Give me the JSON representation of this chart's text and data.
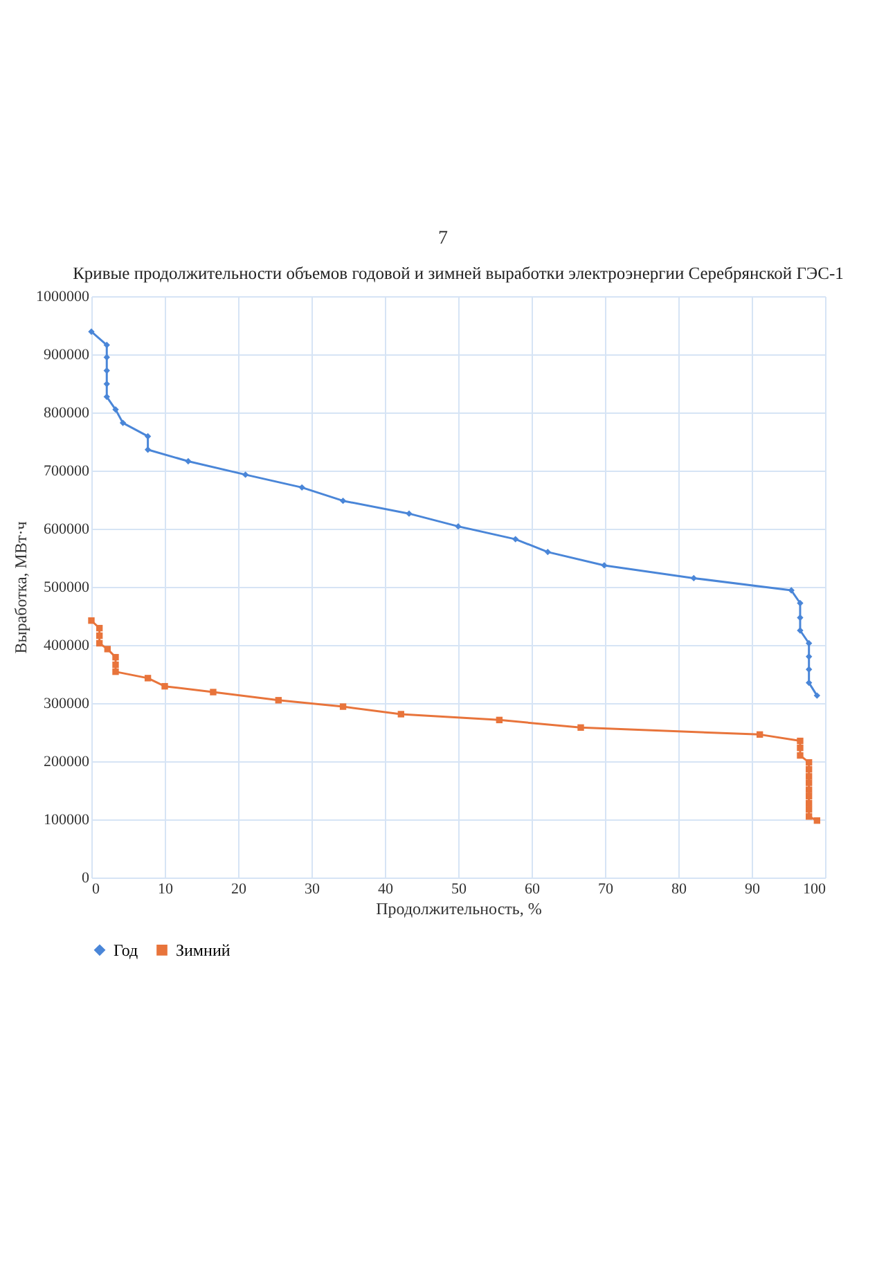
{
  "chart_data": {
    "type": "line",
    "title": "Кривые продолжительности объемов годовой и зимней выработки электроэнергии Серебрянской ГЭС-1",
    "xlabel": "Продолжительность, %",
    "ylabel": "Выработка, МВт·ч",
    "annotations": [
      "7"
    ],
    "xlim": [
      0,
      100
    ],
    "xticks": [
      0,
      10,
      20,
      30,
      40,
      50,
      60,
      70,
      80,
      90,
      100
    ],
    "ylim": [
      0,
      1000000
    ],
    "yticks": [
      0,
      100000,
      200000,
      300000,
      400000,
      500000,
      600000,
      700000,
      800000,
      900000,
      1000000
    ],
    "grid": true,
    "legend": "bottom",
    "line_style": "solid",
    "series": [
      {
        "name": "Год",
        "color": "#4a86d8",
        "marker": "diamond",
        "x": [
          0,
          2.1,
          2.1,
          2.1,
          2.1,
          2.1,
          3.3,
          4.3,
          7.7,
          7.7,
          13.2,
          21.0,
          28.7,
          34.3,
          43.3,
          50.0,
          57.8,
          62.2,
          69.9,
          82.1,
          95.4,
          96.6,
          96.6,
          96.6,
          97.8,
          97.8,
          97.8,
          97.8,
          98.9
        ],
        "values": [
          939000,
          916000,
          895000,
          872000,
          849000,
          827000,
          805000,
          782000,
          759000,
          736000,
          716000,
          693000,
          671000,
          648000,
          626000,
          604000,
          582000,
          560000,
          537000,
          515000,
          494000,
          472000,
          447000,
          425000,
          403000,
          380000,
          358000,
          335000,
          313000
        ]
      },
      {
        "name": "Зимний",
        "color": "#e8743b",
        "marker": "square",
        "x": [
          0,
          1.1,
          1.1,
          1.1,
          2.2,
          3.3,
          3.3,
          3.3,
          7.7,
          10.0,
          16.6,
          25.5,
          34.3,
          42.2,
          55.6,
          66.7,
          91.1,
          96.6,
          96.6,
          96.6,
          97.8,
          97.8,
          97.8,
          97.8,
          97.8,
          97.8,
          97.8,
          97.8,
          97.8,
          98.9
        ],
        "values": [
          442000,
          429000,
          416000,
          403000,
          393000,
          379000,
          366000,
          354000,
          343000,
          329000,
          319000,
          305000,
          294000,
          281000,
          271000,
          258000,
          246000,
          235000,
          223000,
          210000,
          198000,
          186000,
          174000,
          163000,
          151000,
          140000,
          128000,
          117000,
          105000,
          98000
        ]
      }
    ]
  }
}
